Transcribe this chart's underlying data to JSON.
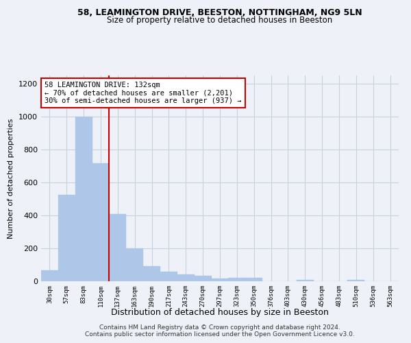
{
  "title1": "58, LEAMINGTON DRIVE, BEESTON, NOTTINGHAM, NG9 5LN",
  "title2": "Size of property relative to detached houses in Beeston",
  "xlabel": "Distribution of detached houses by size in Beeston",
  "ylabel": "Number of detached properties",
  "categories": [
    "30sqm",
    "57sqm",
    "83sqm",
    "110sqm",
    "137sqm",
    "163sqm",
    "190sqm",
    "217sqm",
    "243sqm",
    "270sqm",
    "297sqm",
    "323sqm",
    "350sqm",
    "376sqm",
    "403sqm",
    "430sqm",
    "456sqm",
    "483sqm",
    "510sqm",
    "536sqm",
    "563sqm"
  ],
  "values": [
    65,
    525,
    1000,
    715,
    410,
    198,
    90,
    60,
    40,
    35,
    15,
    20,
    20,
    0,
    0,
    10,
    0,
    0,
    10,
    0,
    0
  ],
  "bar_color": "#aec6e8",
  "bar_edgecolor": "#aec6e8",
  "grid_color": "#c8d0dc",
  "background_color": "#eef2f8",
  "redline_x": 3.5,
  "annotation_text": "58 LEAMINGTON DRIVE: 132sqm\n← 70% of detached houses are smaller (2,201)\n30% of semi-detached houses are larger (937) →",
  "annotation_box_color": "#ffffff",
  "annotation_box_edgecolor": "#cc0000",
  "redline_color": "#cc0000",
  "footer1": "Contains HM Land Registry data © Crown copyright and database right 2024.",
  "footer2": "Contains public sector information licensed under the Open Government Licence v3.0.",
  "ylim": [
    0,
    1250
  ],
  "yticks": [
    0,
    200,
    400,
    600,
    800,
    1000,
    1200
  ]
}
